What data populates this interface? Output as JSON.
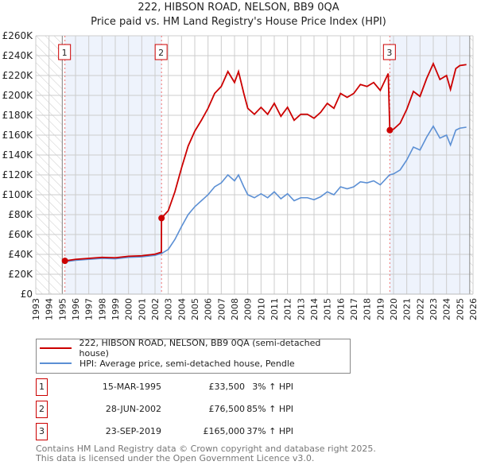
{
  "title": "222, HIBSON ROAD, NELSON, BB9 0QA",
  "subtitle": "Price paid vs. HM Land Registry's House Price Index (HPI)",
  "colors": {
    "price": "#cc0000",
    "hpi": "#5b8fd4",
    "shade": "#eef3fc",
    "grid": "#cccccc"
  },
  "chart_data": {
    "type": "line",
    "xlim": [
      1993,
      2026
    ],
    "ylim": [
      0,
      260000
    ],
    "y_ticks": [
      {
        "v": 0,
        "label": "£0"
      },
      {
        "v": 20000,
        "label": "£20K"
      },
      {
        "v": 40000,
        "label": "£40K"
      },
      {
        "v": 60000,
        "label": "£60K"
      },
      {
        "v": 80000,
        "label": "£80K"
      },
      {
        "v": 100000,
        "label": "£100K"
      },
      {
        "v": 120000,
        "label": "£120K"
      },
      {
        "v": 140000,
        "label": "£140K"
      },
      {
        "v": 160000,
        "label": "£160K"
      },
      {
        "v": 180000,
        "label": "£180K"
      },
      {
        "v": 200000,
        "label": "£200K"
      },
      {
        "v": 220000,
        "label": "£220K"
      },
      {
        "v": 240000,
        "label": "£240K"
      },
      {
        "v": 260000,
        "label": "£260K"
      }
    ],
    "x_ticks": [
      "1993",
      "1994",
      "1995",
      "1996",
      "1997",
      "1998",
      "1999",
      "2000",
      "2001",
      "2002",
      "2003",
      "2004",
      "2005",
      "2006",
      "2007",
      "2008",
      "2009",
      "2010",
      "2011",
      "2012",
      "2013",
      "2014",
      "2015",
      "2016",
      "2017",
      "2018",
      "2019",
      "2020",
      "2021",
      "2022",
      "2023",
      "2024",
      "2025",
      "2026"
    ],
    "data_range": [
      1995.0,
      2025.75
    ],
    "series": [
      {
        "name": "222, HIBSON ROAD, NELSON, BB9 0QA (semi-detached house)",
        "color": "#cc0000",
        "points": [
          [
            1995.2,
            33500
          ],
          [
            1996,
            35000
          ],
          [
            1997,
            36000
          ],
          [
            1998,
            37000
          ],
          [
            1999,
            36600
          ],
          [
            2000,
            38100
          ],
          [
            2001,
            38600
          ],
          [
            2002,
            40200
          ],
          [
            2002.48,
            42200
          ],
          [
            2002.49,
            76500
          ],
          [
            2003,
            84000
          ],
          [
            2003.5,
            103000
          ],
          [
            2004,
            127000
          ],
          [
            2004.5,
            149000
          ],
          [
            2005,
            164000
          ],
          [
            2005.5,
            175000
          ],
          [
            2006,
            187000
          ],
          [
            2006.5,
            202000
          ],
          [
            2007,
            209000
          ],
          [
            2007.5,
            224000
          ],
          [
            2008,
            213000
          ],
          [
            2008.3,
            224000
          ],
          [
            2008.7,
            202000
          ],
          [
            2009,
            187000
          ],
          [
            2009.5,
            181000
          ],
          [
            2010,
            188000
          ],
          [
            2010.5,
            181000
          ],
          [
            2011,
            192000
          ],
          [
            2011.5,
            179000
          ],
          [
            2012,
            188000
          ],
          [
            2012.5,
            175000
          ],
          [
            2013,
            181000
          ],
          [
            2013.5,
            181000
          ],
          [
            2014,
            177000
          ],
          [
            2014.5,
            183000
          ],
          [
            2015,
            192000
          ],
          [
            2015.5,
            187000
          ],
          [
            2016,
            202000
          ],
          [
            2016.5,
            198000
          ],
          [
            2017,
            202000
          ],
          [
            2017.5,
            211000
          ],
          [
            2018,
            209000
          ],
          [
            2018.5,
            213000
          ],
          [
            2019,
            205000
          ],
          [
            2019.6,
            222000
          ],
          [
            2019.72,
            165000
          ],
          [
            2020,
            166000
          ],
          [
            2020.5,
            172000
          ],
          [
            2021,
            186000
          ],
          [
            2021.5,
            204000
          ],
          [
            2022,
            199000
          ],
          [
            2022.5,
            217000
          ],
          [
            2023,
            232000
          ],
          [
            2023.5,
            216000
          ],
          [
            2024,
            220000
          ],
          [
            2024.3,
            206000
          ],
          [
            2024.7,
            227000
          ],
          [
            2025,
            230000
          ],
          [
            2025.5,
            231000
          ]
        ]
      },
      {
        "name": "HPI: Average price, semi-detached house, Pendle",
        "color": "#5b8fd4",
        "points": [
          [
            1995.2,
            32500
          ],
          [
            1996,
            34000
          ],
          [
            1997,
            35000
          ],
          [
            1998,
            36000
          ],
          [
            1999,
            35500
          ],
          [
            2000,
            37000
          ],
          [
            2001,
            37500
          ],
          [
            2002,
            39000
          ],
          [
            2002.5,
            41000
          ],
          [
            2003,
            45000
          ],
          [
            2003.5,
            55000
          ],
          [
            2004,
            68000
          ],
          [
            2004.5,
            80000
          ],
          [
            2005,
            88000
          ],
          [
            2005.5,
            94000
          ],
          [
            2006,
            100000
          ],
          [
            2006.5,
            108000
          ],
          [
            2007,
            112000
          ],
          [
            2007.5,
            120000
          ],
          [
            2008,
            114000
          ],
          [
            2008.3,
            120000
          ],
          [
            2008.7,
            108000
          ],
          [
            2009,
            100000
          ],
          [
            2009.5,
            97000
          ],
          [
            2010,
            101000
          ],
          [
            2010.5,
            97000
          ],
          [
            2011,
            103000
          ],
          [
            2011.5,
            96000
          ],
          [
            2012,
            101000
          ],
          [
            2012.5,
            94000
          ],
          [
            2013,
            97000
          ],
          [
            2013.5,
            97000
          ],
          [
            2014,
            95000
          ],
          [
            2014.5,
            98000
          ],
          [
            2015,
            103000
          ],
          [
            2015.5,
            100000
          ],
          [
            2016,
            108000
          ],
          [
            2016.5,
            106000
          ],
          [
            2017,
            108000
          ],
          [
            2017.5,
            113000
          ],
          [
            2018,
            112000
          ],
          [
            2018.5,
            114000
          ],
          [
            2019,
            110000
          ],
          [
            2019.7,
            120000
          ],
          [
            2020,
            121000
          ],
          [
            2020.5,
            125000
          ],
          [
            2021,
            135000
          ],
          [
            2021.5,
            148000
          ],
          [
            2022,
            145000
          ],
          [
            2022.5,
            158000
          ],
          [
            2023,
            169000
          ],
          [
            2023.5,
            157000
          ],
          [
            2024,
            160000
          ],
          [
            2024.3,
            150000
          ],
          [
            2024.7,
            165000
          ],
          [
            2025,
            167000
          ],
          [
            2025.5,
            168000
          ]
        ]
      }
    ],
    "sales": [
      {
        "n": "1",
        "x": 1995.2,
        "y": 33500
      },
      {
        "n": "2",
        "x": 2002.49,
        "y": 76500
      },
      {
        "n": "3",
        "x": 2019.72,
        "y": 165000
      }
    ]
  },
  "legend": {
    "price": "222, HIBSON ROAD, NELSON, BB9 0QA (semi-detached house)",
    "hpi": "HPI: Average price, semi-detached house, Pendle"
  },
  "transactions": [
    {
      "n": "1",
      "date": "15-MAR-1995",
      "price": "£33,500",
      "hpi": "3% ↑ HPI"
    },
    {
      "n": "2",
      "date": "28-JUN-2002",
      "price": "£76,500",
      "hpi": "85% ↑ HPI"
    },
    {
      "n": "3",
      "date": "23-SEP-2019",
      "price": "£165,000",
      "hpi": "37% ↑ HPI"
    }
  ],
  "footer": [
    "Contains HM Land Registry data © Crown copyright and database right 2025.",
    "This data is licensed under the Open Government Licence v3.0."
  ]
}
